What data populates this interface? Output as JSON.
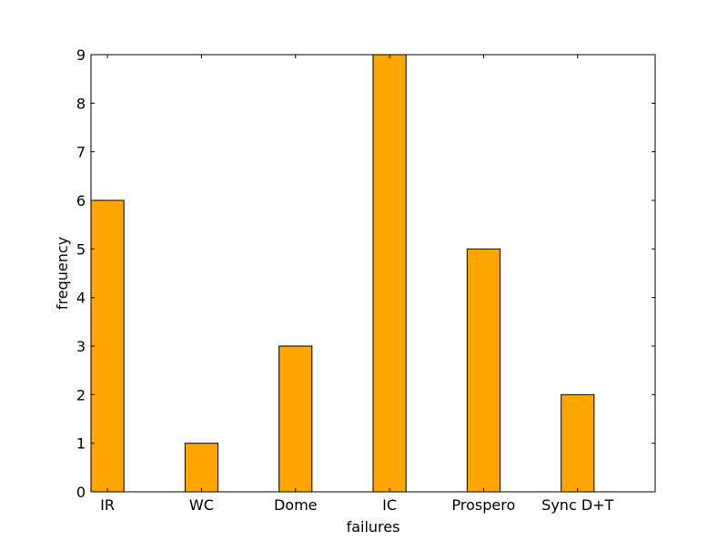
{
  "chart_data": {
    "type": "bar",
    "categories": [
      "IR",
      "WC",
      "Dome",
      "IC",
      "Prospero",
      "Sync D+T"
    ],
    "values": [
      6,
      1,
      3,
      9,
      5,
      2
    ],
    "xlabel": "failures",
    "ylabel": "frequency",
    "ylim": [
      0,
      9
    ],
    "yticks": [
      "0",
      "1",
      "2",
      "3",
      "4",
      "5",
      "6",
      "7",
      "8",
      "9"
    ],
    "grid": false,
    "colors": {
      "bar_fill": "#FFA500",
      "bar_edge": "#000000",
      "axis": "#000000"
    }
  }
}
